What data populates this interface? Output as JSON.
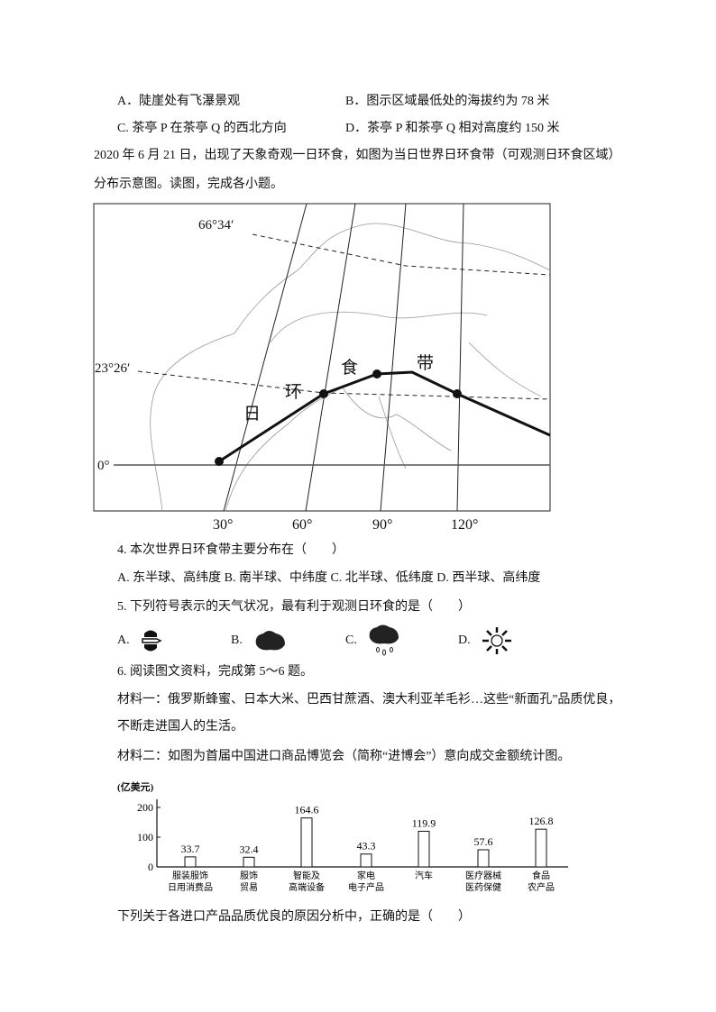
{
  "prev_options": {
    "A": "A．陡崖处有飞瀑景观",
    "B": "B．图示区域最低处的海拔约为 78 米",
    "C": "C. 茶亭 P 在茶亭 Q 的西北方向",
    "D": "D．茶亭 P 和茶亭 Q 相对高度约 150 米"
  },
  "intro": {
    "line1": "2020 年 6 月 21 日，出现了天象奇观一日环食，如图为当日世界日环食带（可观测日环食区域）",
    "line2": "分布示意图。读图，完成各小题。"
  },
  "map": {
    "lat_labels": [
      "66°34′",
      "23°26′",
      "0°"
    ],
    "lon_labels": [
      "30°",
      "60°",
      "90°",
      "120°"
    ],
    "band_chars": [
      "日",
      "环",
      "食",
      "带"
    ]
  },
  "q4": {
    "stem": "4.  本次世界日环食带主要分布在（　　）",
    "options": "A. 东半球、高纬度 B. 南半球、中纬度 C. 北半球、低纬度 D. 西半球、高纬度"
  },
  "q5": {
    "stem": "5.  下列符号表示的天气状况，最有利于观测日环食的是（　　）",
    "options": [
      {
        "letter": "A.",
        "icon": "sandstorm-icon"
      },
      {
        "letter": "B.",
        "icon": "overcast-icon"
      },
      {
        "letter": "C.",
        "icon": "rain-icon"
      },
      {
        "letter": "D.",
        "icon": "sunny-icon"
      }
    ]
  },
  "q6": {
    "stem": "6.  阅读图文资料，完成第 5～6 题。",
    "material1_line1": "材料一：俄罗斯蜂蜜、日本大米、巴西甘蔗酒、澳大利亚羊毛衫…这些“新面孔”品质优良，",
    "material1_line2": "不断走进国人的生活。",
    "material2": "材料二：如图为首届中国进口商品博览会（简称“进博会”）意向成交金额统计图。",
    "final": "下列关于各进口产品品质优良的原因分析中，正确的是（　　）"
  },
  "chart_data": {
    "type": "bar",
    "ylabel": "(亿美元)",
    "ylim": [
      0,
      230
    ],
    "yticks": [
      0,
      100,
      200
    ],
    "categories": [
      [
        "服装服饰",
        "日用消费品"
      ],
      [
        "服饰",
        "贸易"
      ],
      [
        "智能及",
        "高端设备"
      ],
      [
        "家电",
        "电子产品"
      ],
      [
        "汽车"
      ],
      [
        "医疗器械",
        "医药保健"
      ],
      [
        "食品",
        "农产品"
      ]
    ],
    "values": [
      33.7,
      32.4,
      164.6,
      43.3,
      119.9,
      57.6,
      126.8
    ],
    "value_labels": [
      "33.7",
      "32.4",
      "164.6",
      "43.3",
      "119.9",
      "57.6",
      "126.8"
    ]
  }
}
